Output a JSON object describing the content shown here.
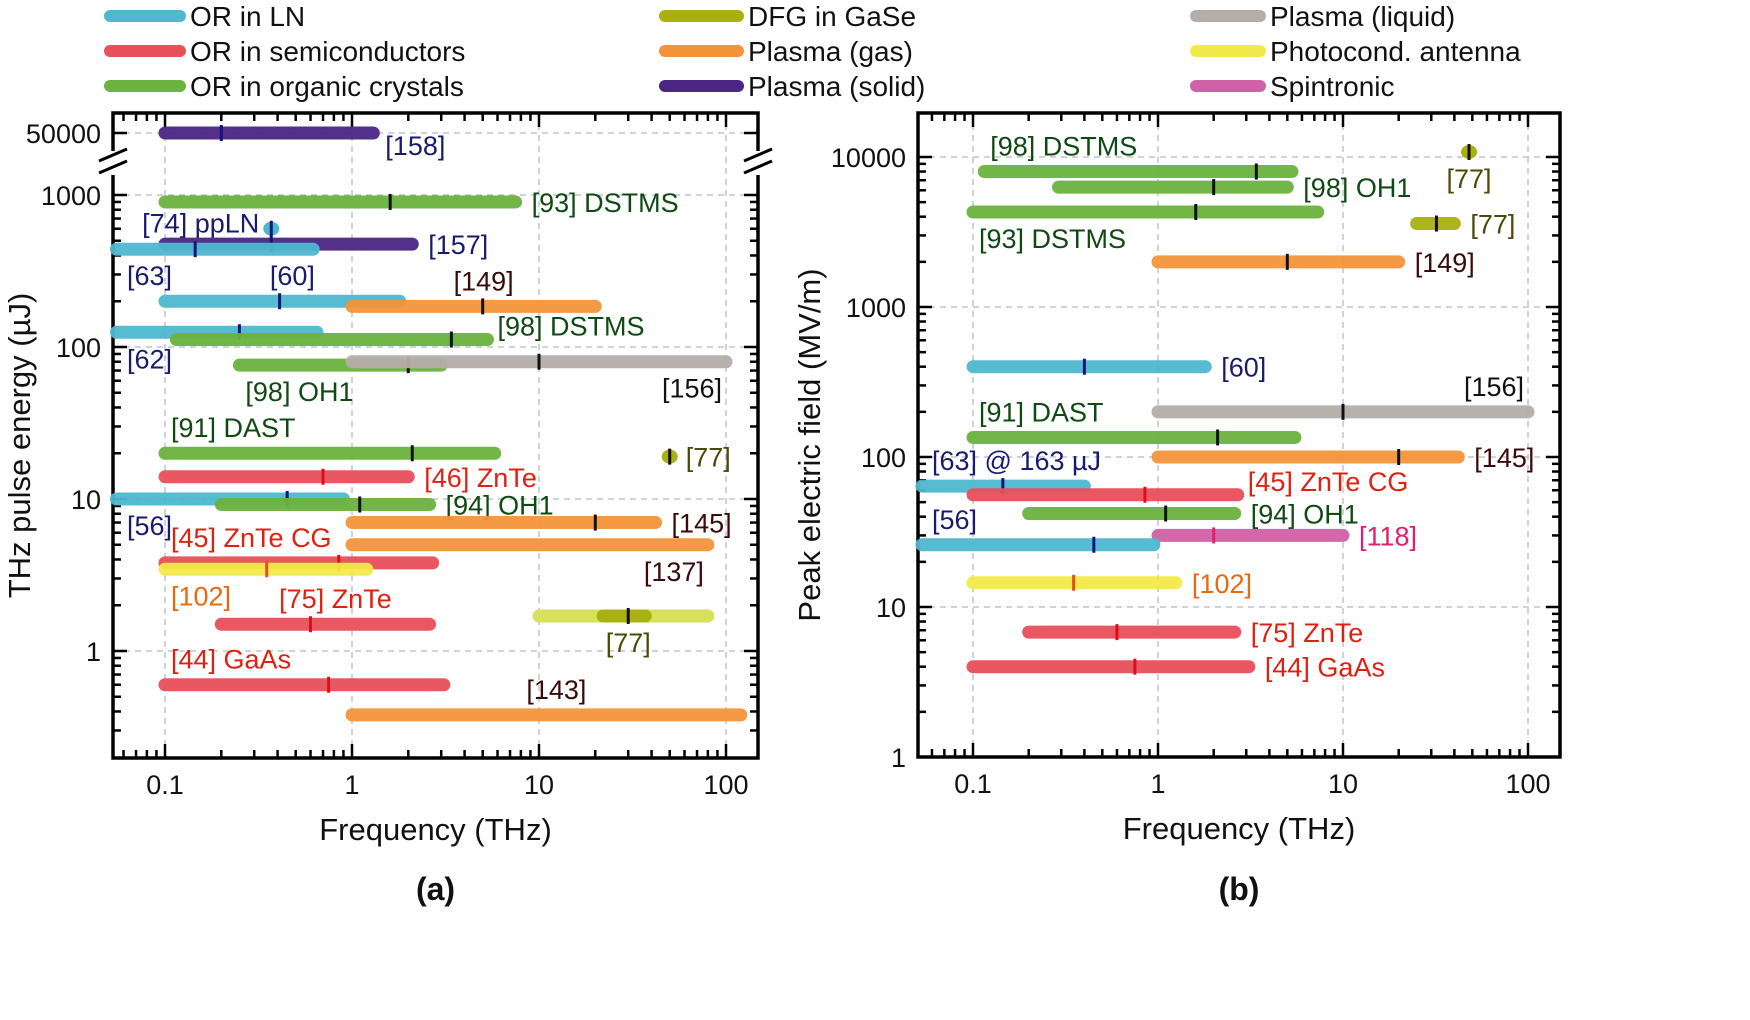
{
  "legend": [
    {
      "key": "ln",
      "label": "OR in LN",
      "color": "#4fb8cf"
    },
    {
      "key": "semi",
      "label": "OR in semiconductors",
      "color": "#e8505a"
    },
    {
      "key": "org",
      "label": "OR in organic crystals",
      "color": "#6cb33f"
    },
    {
      "key": "dfg",
      "label": "DFG in GaSe",
      "color": "#a8b012"
    },
    {
      "key": "gas",
      "label": "Plasma (gas)",
      "color": "#f4943a"
    },
    {
      "key": "solid",
      "label": "Plasma (solid)",
      "color": "#4a2685"
    },
    {
      "key": "liquid",
      "label": "Plasma (liquid)",
      "color": "#b5adaa"
    },
    {
      "key": "pca",
      "label": "Photocond. antenna",
      "color": "#f2ea4a"
    },
    {
      "key": "spin",
      "label": "Spintronic",
      "color": "#d060a8"
    }
  ],
  "label_colors": {
    "ln": "#1a1a6e",
    "semi": "#e02010",
    "org": "#0f4a12",
    "dfg": "#4a4a0a",
    "gas": "#3a0a0a",
    "solid": "#1a1a6e",
    "liquid": "#111111",
    "pca": "#e86a10",
    "spin": "#e0206a"
  },
  "chart_data": [
    {
      "type": "range-bar",
      "panel_label": "(a)",
      "xlabel": "Frequency (THz)",
      "ylabel": "THz pulse energy (µJ)",
      "xscale": "log",
      "yscale": "log",
      "xlim": [
        0.053,
        150
      ],
      "ylim": [
        0.2,
        1500
      ],
      "y_break": {
        "upper_value": 50000,
        "upper_tick": "50000"
      },
      "xticks": [
        {
          "v": 0.1,
          "label": "0.1"
        },
        {
          "v": 1,
          "label": "1"
        },
        {
          "v": 10,
          "label": "10"
        },
        {
          "v": 100,
          "label": "100"
        }
      ],
      "yticks": [
        {
          "v": 1,
          "label": "1"
        },
        {
          "v": 10,
          "label": "10"
        },
        {
          "v": 100,
          "label": "100"
        },
        {
          "v": 1000,
          "label": "1000"
        }
      ],
      "grid": true,
      "bars": [
        {
          "ref": "[158]",
          "cat": "solid",
          "f_min": 0.1,
          "f_max": 1.3,
          "f_peak": 0.2,
          "y": 50000,
          "upper": true,
          "label": "[158]",
          "label_pos": "right-below"
        },
        {
          "ref": "[93] DSTMS",
          "cat": "org",
          "f_min": 0.1,
          "f_max": 7.5,
          "f_peak": 1.6,
          "y": 900,
          "label": "[93] DSTMS",
          "label_pos": "right"
        },
        {
          "ref": "[74] ppLN",
          "cat": "ln",
          "f_min": 0.37,
          "f_max": 0.37,
          "f_peak": 0.37,
          "y": 600,
          "dot": true,
          "label": "[74] ppLN",
          "label_pos": "left"
        },
        {
          "ref": "[157]",
          "cat": "solid",
          "f_min": 0.1,
          "f_max": 2.1,
          "f_peak": 0.37,
          "y": 475,
          "label": "[157]",
          "label_pos": "right"
        },
        {
          "ref": "[63]",
          "cat": "ln",
          "f_min": 0.055,
          "f_max": 0.62,
          "f_peak": 0.145,
          "y": 440,
          "label": "[63]",
          "label_pos": "below-left"
        },
        {
          "ref": "[60]",
          "cat": "ln",
          "f_min": 0.1,
          "f_max": 1.8,
          "f_peak": 0.41,
          "y": 200,
          "label": "[60]",
          "label_pos": "above-mid"
        },
        {
          "ref": "[149]",
          "cat": "gas",
          "f_min": 1.0,
          "f_max": 20,
          "f_peak": 5.0,
          "y": 185,
          "label": "[149]",
          "label_pos": "above-mid"
        },
        {
          "ref": "[62]",
          "cat": "ln",
          "f_min": 0.055,
          "f_max": 0.65,
          "f_peak": 0.25,
          "y": 125,
          "label": "[62]",
          "label_pos": "below-left"
        },
        {
          "ref": "[98] DSTMS",
          "cat": "org",
          "f_min": 0.115,
          "f_max": 5.3,
          "f_peak": 3.4,
          "y": 112,
          "label": "[98] DSTMS",
          "label_pos": "right-up"
        },
        {
          "ref": "[98] OH1",
          "cat": "org",
          "f_min": 0.25,
          "f_max": 3.0,
          "f_peak": 2.0,
          "y": 76,
          "label": "[98] OH1",
          "label_pos": "below-left"
        },
        {
          "ref": "[156]",
          "cat": "liquid",
          "f_min": 1.0,
          "f_max": 100,
          "f_peak": 10,
          "y": 80,
          "label": "[156]",
          "label_pos": "below-right"
        },
        {
          "ref": "[91] DAST",
          "cat": "org",
          "f_min": 0.1,
          "f_max": 5.8,
          "f_peak": 2.1,
          "y": 20,
          "label": "[91] DAST",
          "label_pos": "above-left"
        },
        {
          "ref": "[77]",
          "cat": "dfg",
          "f_min": 50,
          "f_max": 50,
          "f_peak": 50,
          "y": 19,
          "dot": true,
          "label": "[77]",
          "label_pos": "right"
        },
        {
          "ref": "[46] ZnTe",
          "cat": "semi",
          "f_min": 0.1,
          "f_max": 2.0,
          "f_peak": 0.7,
          "y": 14,
          "label": "[46] ZnTe",
          "label_pos": "right"
        },
        {
          "ref": "[56]",
          "cat": "ln",
          "f_min": 0.055,
          "f_max": 0.9,
          "f_peak": 0.45,
          "y": 10,
          "label": "[56]",
          "label_pos": "below-left"
        },
        {
          "ref": "[94] OH1",
          "cat": "org",
          "f_min": 0.2,
          "f_max": 2.6,
          "f_peak": 1.1,
          "y": 9.2,
          "label": "[94] OH1",
          "label_pos": "right"
        },
        {
          "ref": "[145]",
          "cat": "gas",
          "f_min": 1.0,
          "f_max": 42,
          "f_peak": 20,
          "y": 7.0,
          "label": "[145]",
          "label_pos": "right"
        },
        {
          "ref": "[45] ZnTe CG",
          "cat": "semi",
          "f_min": 0.1,
          "f_max": 2.7,
          "f_peak": 0.85,
          "y": 3.8,
          "label": "[45] ZnTe CG",
          "label_pos": "above-left"
        },
        {
          "ref": "[137]",
          "cat": "gas",
          "f_min": 1.0,
          "f_max": 80,
          "f_peak": null,
          "y": 5.0,
          "label": "[137]",
          "label_pos": "below-right"
        },
        {
          "ref": "[102]",
          "cat": "pca",
          "f_min": 0.1,
          "f_max": 1.2,
          "f_peak": 0.35,
          "y": 3.45,
          "label": "[102]",
          "label_pos": "below-left"
        },
        {
          "ref": "[75] ZnTe",
          "cat": "semi",
          "f_min": 0.2,
          "f_max": 2.6,
          "f_peak": 0.6,
          "y": 1.5,
          "label": "[75] ZnTe",
          "label_pos": "above-mid"
        },
        {
          "ref": "[77]",
          "cat": "dfg",
          "f_min": 10,
          "f_max": 80,
          "f_peak": 30,
          "f_core": [
            22,
            37
          ],
          "light": true,
          "y": 1.7,
          "label": "[77]",
          "label_pos": "below-mid"
        },
        {
          "ref": "[44] GaAs",
          "cat": "semi",
          "f_min": 0.1,
          "f_max": 3.1,
          "f_peak": 0.75,
          "y": 0.6,
          "label": "[44] GaAs",
          "label_pos": "above-left"
        },
        {
          "ref": "[143]",
          "cat": "gas",
          "f_min": 1.0,
          "f_max": 120,
          "f_peak": null,
          "y": 0.38,
          "label": "[143]",
          "label_pos": "above-mid"
        }
      ]
    },
    {
      "type": "range-bar",
      "panel_label": "(b)",
      "xlabel": "Frequency (THz)",
      "ylabel": "Peak electric field (MV/m)",
      "xscale": "log",
      "yscale": "log",
      "xlim": [
        0.053,
        150
      ],
      "ylim": [
        1,
        20000
      ],
      "xticks": [
        {
          "v": 0.1,
          "label": "0.1"
        },
        {
          "v": 1,
          "label": "1"
        },
        {
          "v": 10,
          "label": "10"
        },
        {
          "v": 100,
          "label": "100"
        }
      ],
      "yticks": [
        {
          "v": 1,
          "label": "1"
        },
        {
          "v": 10,
          "label": "10"
        },
        {
          "v": 100,
          "label": "100"
        },
        {
          "v": 1000,
          "label": "1000"
        },
        {
          "v": 10000,
          "label": "10000"
        }
      ],
      "grid": true,
      "bars": [
        {
          "ref": "[77]",
          "cat": "dfg",
          "f_min": 48,
          "f_max": 48,
          "f_peak": 48,
          "y": 10800,
          "dot": true,
          "label": "[77]",
          "label_pos": "below"
        },
        {
          "ref": "[98] DSTMS",
          "cat": "org",
          "f_min": 0.115,
          "f_max": 5.3,
          "f_peak": 3.4,
          "y": 8000,
          "label": "[98] DSTMS",
          "label_pos": "above-left"
        },
        {
          "ref": "[98] OH1",
          "cat": "org",
          "f_min": 0.29,
          "f_max": 5.0,
          "f_peak": 2.0,
          "y": 6300,
          "label": "[98] OH1",
          "label_pos": "right"
        },
        {
          "ref": "[93] DSTMS",
          "cat": "org",
          "f_min": 0.1,
          "f_max": 7.3,
          "f_peak": 1.6,
          "y": 4300,
          "label": "[93] DSTMS",
          "label_pos": "below-left"
        },
        {
          "ref": "[77]",
          "cat": "dfg",
          "f_min": 25,
          "f_max": 40,
          "f_peak": 32,
          "y": 3600,
          "label": "[77]",
          "label_pos": "right"
        },
        {
          "ref": "[149]",
          "cat": "gas",
          "f_min": 1.0,
          "f_max": 20,
          "f_peak": 5.0,
          "y": 2000,
          "label": "[149]",
          "label_pos": "right"
        },
        {
          "ref": "[60]",
          "cat": "ln",
          "f_min": 0.1,
          "f_max": 1.8,
          "f_peak": 0.4,
          "y": 400,
          "label": "[60]",
          "label_pos": "right"
        },
        {
          "ref": "[156]",
          "cat": "liquid",
          "f_min": 1.0,
          "f_max": 100,
          "f_peak": 10,
          "y": 200,
          "label": "[156]",
          "label_pos": "above-right"
        },
        {
          "ref": "[91] DAST",
          "cat": "org",
          "f_min": 0.1,
          "f_max": 5.5,
          "f_peak": 2.1,
          "y": 135,
          "label": "[91] DAST",
          "label_pos": "above-left"
        },
        {
          "ref": "[145]",
          "cat": "gas",
          "f_min": 1.0,
          "f_max": 42,
          "f_peak": 20,
          "y": 100,
          "label": "[145]",
          "label_pos": "right"
        },
        {
          "ref": "[63] @ 163 µJ",
          "cat": "ln",
          "f_min": 0.053,
          "f_max": 0.4,
          "f_peak": 0.145,
          "y": 64,
          "label": "[63] @ 163 µJ",
          "label_pos": "above-left"
        },
        {
          "ref": "[45] ZnTe CG",
          "cat": "semi",
          "f_min": 0.1,
          "f_max": 2.7,
          "f_peak": 0.85,
          "y": 56,
          "label": "[45] ZnTe CG",
          "label_pos": "right-up"
        },
        {
          "ref": "[94] OH1",
          "cat": "org",
          "f_min": 0.2,
          "f_max": 2.6,
          "f_peak": 1.1,
          "y": 42,
          "label": "[94] OH1",
          "label_pos": "right"
        },
        {
          "ref": "[118]",
          "cat": "spin",
          "f_min": 1.0,
          "f_max": 10,
          "f_peak": 2.0,
          "y": 30,
          "label": "[118]",
          "label_pos": "right"
        },
        {
          "ref": "[56]",
          "cat": "ln",
          "f_min": 0.053,
          "f_max": 0.95,
          "f_peak": 0.45,
          "y": 26,
          "label": "[56]",
          "label_pos": "above-left"
        },
        {
          "ref": "[102]",
          "cat": "pca",
          "f_min": 0.1,
          "f_max": 1.25,
          "f_peak": 0.35,
          "y": 14.5,
          "label": "[102]",
          "label_pos": "right"
        },
        {
          "ref": "[75] ZnTe",
          "cat": "semi",
          "f_min": 0.2,
          "f_max": 2.6,
          "f_peak": 0.6,
          "y": 6.8,
          "label": "[75] ZnTe",
          "label_pos": "right"
        },
        {
          "ref": "[44] GaAs",
          "cat": "semi",
          "f_min": 0.1,
          "f_max": 3.1,
          "f_peak": 0.75,
          "y": 4.0,
          "label": "[44] GaAs",
          "label_pos": "right"
        }
      ]
    }
  ]
}
